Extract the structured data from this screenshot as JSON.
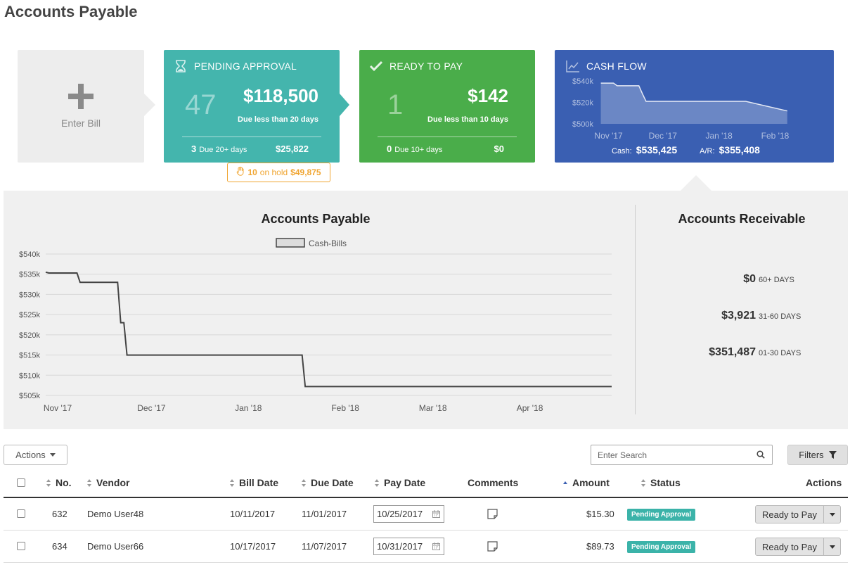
{
  "page": {
    "title": "Accounts Payable"
  },
  "cards": {
    "enter_bill": {
      "label": "Enter Bill"
    },
    "pending": {
      "title": "PENDING APPROVAL",
      "count": "47",
      "amount": "$118,500",
      "due": "Due less than 20 days",
      "foot_count": "3",
      "foot_label": "Due 20+ days",
      "foot_amount": "$25,822",
      "onhold_count": "10",
      "onhold_label": "on hold",
      "onhold_amount": "$49,875",
      "color": "#44b5ad"
    },
    "ready": {
      "title": "READY TO PAY",
      "count": "1",
      "amount": "$142",
      "due": "Due less than 10 days",
      "foot_count": "0",
      "foot_label": "Due 10+ days",
      "foot_amount": "$0",
      "color": "#4aad4a"
    },
    "cashflow": {
      "title": "CASH FLOW",
      "cash_label": "Cash:",
      "cash_value": "$535,425",
      "ar_label": "A/R:",
      "ar_value": "$355,408",
      "color": "#3a5fb2",
      "chart_data": {
        "type": "area",
        "y_ticks": [
          "$540k",
          "$520k",
          "$500k"
        ],
        "x_ticks": [
          "Nov '17",
          "Dec '17",
          "Jan '18",
          "Feb '18"
        ],
        "ylim": [
          500000,
          540000
        ],
        "x": [
          "2017-11-01",
          "2017-11-08",
          "2017-11-10",
          "2017-11-22",
          "2017-11-24",
          "2017-11-26",
          "2018-01-20",
          "2018-02-12"
        ],
        "values": [
          538000,
          538000,
          535500,
          535500,
          528000,
          521000,
          521000,
          512000
        ]
      }
    }
  },
  "panel": {
    "ap_title": "Accounts Payable",
    "ar_title": "Accounts Receivable",
    "ar_buckets": [
      {
        "amount": "$0",
        "label": "60+ DAYS"
      },
      {
        "amount": "$3,921",
        "label": "31-60 DAYS"
      },
      {
        "amount": "$351,487",
        "label": "01-30 DAYS"
      }
    ]
  },
  "chart_data": {
    "type": "line",
    "title": "Accounts Payable",
    "legend": "Cash-Bills",
    "legend_position": "top",
    "grid": true,
    "ylim": [
      505000,
      540000
    ],
    "y_ticks": [
      "$540k",
      "$535k",
      "$530k",
      "$525k",
      "$520k",
      "$515k",
      "$510k",
      "$505k"
    ],
    "x_ticks": [
      "Nov '17",
      "Dec '17",
      "Jan '18",
      "Feb '18",
      "Mar '18",
      "Apr '18"
    ],
    "series": [
      {
        "name": "Cash-Bills",
        "x": [
          "2017-11-01",
          "2017-11-02",
          "2017-11-03",
          "2017-11-11",
          "2017-11-12",
          "2017-11-24",
          "2017-11-25",
          "2017-11-26",
          "2017-11-27",
          "2018-01-22",
          "2018-01-23",
          "2018-05-01"
        ],
        "values": [
          535500,
          535300,
          535300,
          535300,
          533000,
          533000,
          523000,
          523000,
          515000,
          515000,
          507200,
          507200
        ]
      }
    ]
  },
  "toolbar": {
    "actions_label": "Actions",
    "search_placeholder": "Enter Search",
    "filters_label": "Filters"
  },
  "table": {
    "columns": {
      "no": "No.",
      "vendor": "Vendor",
      "bill_date": "Bill Date",
      "due_date": "Due Date",
      "pay_date": "Pay Date",
      "comments": "Comments",
      "amount": "Amount",
      "status": "Status",
      "actions": "Actions"
    },
    "rows": [
      {
        "no": "632",
        "vendor": "Demo User48",
        "bill_date": "10/11/2017",
        "due_date": "11/01/2017",
        "pay_date": "10/25/2017",
        "amount": "$15.30",
        "status": "Pending Approval",
        "action": "Ready to Pay"
      },
      {
        "no": "634",
        "vendor": "Demo User66",
        "bill_date": "10/17/2017",
        "due_date": "11/07/2017",
        "pay_date": "10/31/2017",
        "amount": "$89.73",
        "status": "Pending Approval",
        "action": "Ready to Pay"
      }
    ]
  }
}
